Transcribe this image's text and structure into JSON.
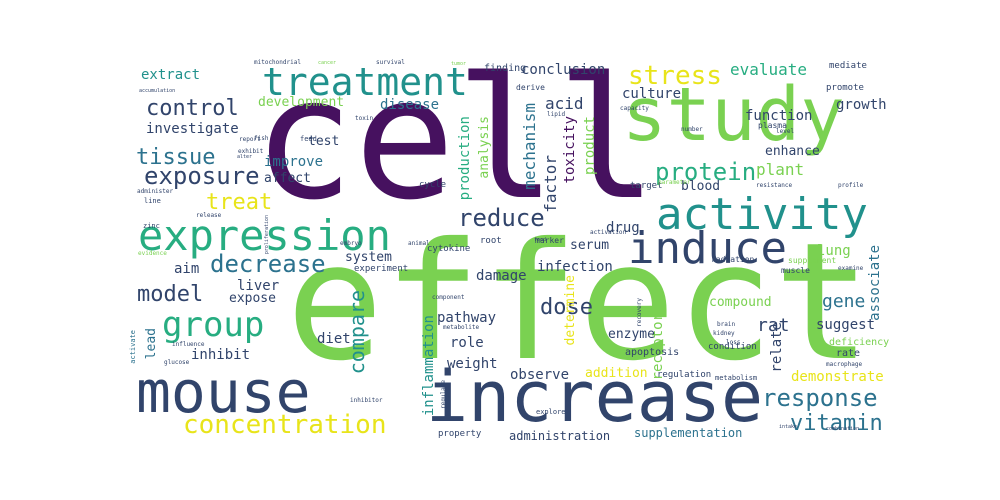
{
  "palette": {
    "purple": "#46115f",
    "indigo": "#3b528b",
    "blue": "#2c728e",
    "teal": "#21918c",
    "green": "#27ad81",
    "lime": "#7ad151",
    "yellow": "#e8e41a",
    "navy": "#31446b"
  },
  "words": [
    {
      "text": "cell",
      "color": "#46115f"
    },
    {
      "text": "effect",
      "color": "#7ad151"
    },
    {
      "text": "study",
      "color": "#7ad151"
    },
    {
      "text": "increase",
      "color": "#31446b"
    },
    {
      "text": "mouse",
      "color": "#31446b"
    },
    {
      "text": "treatment",
      "color": "#21918c"
    },
    {
      "text": "expression",
      "color": "#27ad81"
    },
    {
      "text": "activity",
      "color": "#21918c"
    },
    {
      "text": "induce",
      "color": "#31446b"
    },
    {
      "text": "group",
      "color": "#27ad81"
    },
    {
      "text": "concentration",
      "color": "#e8e41a"
    },
    {
      "text": "decrease",
      "color": "#2c728e"
    },
    {
      "text": "control",
      "color": "#31446b"
    },
    {
      "text": "exposure",
      "color": "#31446b"
    },
    {
      "text": "tissue",
      "color": "#2c728e"
    },
    {
      "text": "stress",
      "color": "#e8e41a"
    },
    {
      "text": "protein",
      "color": "#27ad81"
    },
    {
      "text": "reduce",
      "color": "#31446b"
    },
    {
      "text": "response",
      "color": "#2c728e"
    },
    {
      "text": "vitamin",
      "color": "#2c728e"
    },
    {
      "text": "model",
      "color": "#31446b"
    },
    {
      "text": "treat",
      "color": "#e8e41a"
    },
    {
      "text": "dose",
      "color": "#31446b"
    },
    {
      "text": "compare",
      "color": "#21918c"
    },
    {
      "text": "gene",
      "color": "#2c728e"
    },
    {
      "text": "rat",
      "color": "#31446b"
    },
    {
      "text": "extract",
      "color": "#21918c"
    },
    {
      "text": "investigate",
      "color": "#31446b"
    },
    {
      "text": "evaluate",
      "color": "#27ad81"
    },
    {
      "text": "function",
      "color": "#31446b"
    },
    {
      "text": "conclusion",
      "color": "#31446b"
    },
    {
      "text": "growth",
      "color": "#31446b"
    },
    {
      "text": "culture",
      "color": "#31446b"
    },
    {
      "text": "development",
      "color": "#7ad151"
    },
    {
      "text": "disease",
      "color": "#2c728e"
    },
    {
      "text": "acid",
      "color": "#31446b"
    },
    {
      "text": "mechanism",
      "color": "#2c728e"
    },
    {
      "text": "factor",
      "color": "#31446b"
    },
    {
      "text": "production",
      "color": "#27ad81"
    },
    {
      "text": "analysis",
      "color": "#7ad151"
    },
    {
      "text": "toxicity",
      "color": "#46115f"
    },
    {
      "text": "product",
      "color": "#7ad151"
    },
    {
      "text": "test",
      "color": "#31446b"
    },
    {
      "text": "improve",
      "color": "#2c728e"
    },
    {
      "text": "affect",
      "color": "#31446b"
    },
    {
      "text": "plant",
      "color": "#7ad151"
    },
    {
      "text": "enhance",
      "color": "#31446b"
    },
    {
      "text": "blood",
      "color": "#31446b"
    },
    {
      "text": "drug",
      "color": "#31446b"
    },
    {
      "text": "serum",
      "color": "#31446b"
    },
    {
      "text": "associate",
      "color": "#2c728e"
    },
    {
      "text": "lung",
      "color": "#7ad151"
    },
    {
      "text": "system",
      "color": "#31446b"
    },
    {
      "text": "aim",
      "color": "#31446b"
    },
    {
      "text": "damage",
      "color": "#31446b"
    },
    {
      "text": "infection",
      "color": "#31446b"
    },
    {
      "text": "liver",
      "color": "#31446b"
    },
    {
      "text": "expose",
      "color": "#31446b"
    },
    {
      "text": "pathway",
      "color": "#31446b"
    },
    {
      "text": "role",
      "color": "#31446b"
    },
    {
      "text": "weight",
      "color": "#31446b"
    },
    {
      "text": "inflammation",
      "color": "#21918c"
    },
    {
      "text": "observe",
      "color": "#31446b"
    },
    {
      "text": "addition",
      "color": "#e8e41a"
    },
    {
      "text": "demonstrate",
      "color": "#e8e41a"
    },
    {
      "text": "suggest",
      "color": "#31446b"
    },
    {
      "text": "relate",
      "color": "#31446b"
    },
    {
      "text": "receptor",
      "color": "#7ad151"
    },
    {
      "text": "determine",
      "color": "#e8e41a"
    },
    {
      "text": "enzyme",
      "color": "#31446b"
    },
    {
      "text": "compound",
      "color": "#7ad151"
    },
    {
      "text": "inhibit",
      "color": "#31446b"
    },
    {
      "text": "diet",
      "color": "#31446b"
    },
    {
      "text": "lead",
      "color": "#2c728e"
    },
    {
      "text": "administration",
      "color": "#31446b"
    },
    {
      "text": "supplementation",
      "color": "#2c728e"
    },
    {
      "text": "apoptosis",
      "color": "#31446b"
    },
    {
      "text": "regulation",
      "color": "#31446b"
    },
    {
      "text": "rate",
      "color": "#31446b"
    },
    {
      "text": "deficiency",
      "color": "#7ad151"
    },
    {
      "text": "condition",
      "color": "#31446b"
    },
    {
      "text": "cycle",
      "color": "#31446b"
    },
    {
      "text": "cytokine",
      "color": "#31446b"
    },
    {
      "text": "experiment",
      "color": "#31446b"
    },
    {
      "text": "root",
      "color": "#31446b"
    },
    {
      "text": "marker",
      "color": "#31446b"
    },
    {
      "text": "radiation",
      "color": "#31446b"
    },
    {
      "text": "supplement",
      "color": "#7ad151"
    },
    {
      "text": "muscle",
      "color": "#31446b"
    },
    {
      "text": "target",
      "color": "#31446b"
    },
    {
      "text": "metabolism",
      "color": "#31446b"
    },
    {
      "text": "property",
      "color": "#31446b"
    },
    {
      "text": "explore",
      "color": "#31446b"
    },
    {
      "text": "promote",
      "color": "#31446b"
    },
    {
      "text": "mediate",
      "color": "#31446b"
    },
    {
      "text": "finding",
      "color": "#31446b"
    },
    {
      "text": "derive",
      "color": "#31446b"
    },
    {
      "text": "plasma",
      "color": "#31446b"
    },
    {
      "text": "level",
      "color": "#31446b"
    },
    {
      "text": "brain",
      "color": "#31446b"
    },
    {
      "text": "kidney",
      "color": "#31446b"
    },
    {
      "text": "loss",
      "color": "#31446b"
    },
    {
      "text": "macrophage",
      "color": "#31446b"
    },
    {
      "text": "profile",
      "color": "#31446b"
    },
    {
      "text": "examine",
      "color": "#31446b"
    },
    {
      "text": "resistance",
      "color": "#31446b"
    },
    {
      "text": "activation",
      "color": "#31446b"
    },
    {
      "text": "metabolite",
      "color": "#31446b"
    },
    {
      "text": "component",
      "color": "#31446b"
    },
    {
      "text": "release",
      "color": "#31446b"
    },
    {
      "text": "embryo",
      "color": "#31446b"
    },
    {
      "text": "animal",
      "color": "#31446b"
    },
    {
      "text": "zinc",
      "color": "#31446b"
    },
    {
      "text": "line",
      "color": "#31446b"
    },
    {
      "text": "evidence",
      "color": "#7ad151"
    },
    {
      "text": "activate",
      "color": "#2c728e"
    },
    {
      "text": "influence",
      "color": "#31446b"
    },
    {
      "text": "glucose",
      "color": "#31446b"
    },
    {
      "text": "inhibitor",
      "color": "#31446b"
    },
    {
      "text": "feed",
      "color": "#31446b"
    },
    {
      "text": "report",
      "color": "#31446b"
    },
    {
      "text": "exhibit",
      "color": "#31446b"
    },
    {
      "text": "number",
      "color": "#31446b"
    },
    {
      "text": "capacity",
      "color": "#31446b"
    },
    {
      "text": "mitochondrial",
      "color": "#31446b"
    },
    {
      "text": "survival",
      "color": "#31446b"
    },
    {
      "text": "cancer",
      "color": "#7ad151"
    },
    {
      "text": "tumor",
      "color": "#7ad151"
    },
    {
      "text": "accumulation",
      "color": "#31446b"
    },
    {
      "text": "administer",
      "color": "#31446b"
    },
    {
      "text": "combination",
      "color": "#31446b"
    },
    {
      "text": "intake",
      "color": "#31446b"
    },
    {
      "text": "alter",
      "color": "#31446b"
    },
    {
      "text": "food",
      "color": "#31446b"
    },
    {
      "text": "parameter",
      "color": "#7ad151"
    },
    {
      "text": "regulate",
      "color": "#31446b"
    },
    {
      "text": "fish",
      "color": "#31446b"
    },
    {
      "text": "proliferation",
      "color": "#31446b"
    },
    {
      "text": "toxin",
      "color": "#31446b"
    },
    {
      "text": "lipid",
      "color": "#31446b"
    },
    {
      "text": "recovery",
      "color": "#31446b"
    }
  ]
}
